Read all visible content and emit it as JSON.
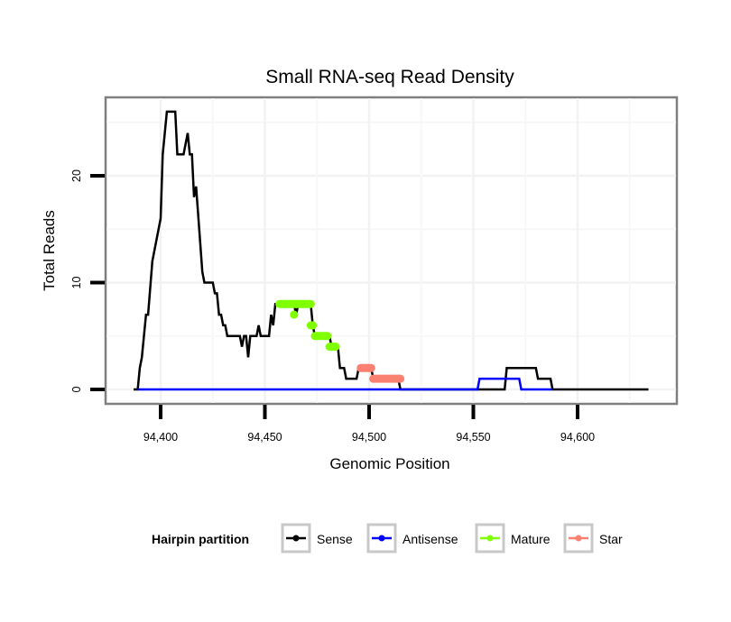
{
  "chart_data": {
    "type": "line",
    "title": "Small RNA-seq Read Density",
    "xlabel": "Genomic Position",
    "ylabel": "Total Reads",
    "xlim": [
      94380,
      94640
    ],
    "ylim": [
      -1.3,
      27.5
    ],
    "x_ticks": [
      94400,
      94450,
      94500,
      94550,
      94600
    ],
    "x_tick_labels": [
      "94,400",
      "94,450",
      "94,500",
      "94,550",
      "94,600"
    ],
    "y_ticks": [
      0,
      10,
      20
    ],
    "y_tick_labels": [
      "0",
      "10",
      "20"
    ],
    "grid": true,
    "legend": {
      "title": "Hairpin partition",
      "position": "bottom",
      "entries": [
        {
          "name": "Sense",
          "color": "#000000"
        },
        {
          "name": "Antisense",
          "color": "#0000ff"
        },
        {
          "name": "Mature",
          "color": "#7fff00"
        },
        {
          "name": "Star",
          "color": "#fa8072"
        }
      ]
    },
    "series": [
      {
        "name": "Sense",
        "color": "#000000",
        "style": "line",
        "points": [
          [
            94387,
            0
          ],
          [
            94389,
            0
          ],
          [
            94390,
            2
          ],
          [
            94391,
            3
          ],
          [
            94393,
            7
          ],
          [
            94394,
            7
          ],
          [
            94396,
            12
          ],
          [
            94398,
            14
          ],
          [
            94399,
            15
          ],
          [
            94400,
            16
          ],
          [
            94401,
            22
          ],
          [
            94403,
            26
          ],
          [
            94407,
            26
          ],
          [
            94408,
            22
          ],
          [
            94411,
            22
          ],
          [
            94413,
            24
          ],
          [
            94414,
            22
          ],
          [
            94415,
            22
          ],
          [
            94416,
            18
          ],
          [
            94417,
            19
          ],
          [
            94420,
            11
          ],
          [
            94421,
            10
          ],
          [
            94425,
            10
          ],
          [
            94426,
            9
          ],
          [
            94427,
            9
          ],
          [
            94428,
            7
          ],
          [
            94429,
            7
          ],
          [
            94430,
            6
          ],
          [
            94431,
            6
          ],
          [
            94432,
            5
          ],
          [
            94438,
            5
          ],
          [
            94439,
            4
          ],
          [
            94440,
            5
          ],
          [
            94441,
            5
          ],
          [
            94442,
            3
          ],
          [
            94443,
            5
          ],
          [
            94446,
            5
          ],
          [
            94447,
            6
          ],
          [
            94448,
            5
          ],
          [
            94452,
            5
          ],
          [
            94453,
            7
          ],
          [
            94454,
            6
          ],
          [
            94455,
            8
          ],
          [
            94464,
            8
          ],
          [
            94465,
            7
          ],
          [
            94466,
            8
          ],
          [
            94472,
            8
          ],
          [
            94473,
            6
          ],
          [
            94474,
            5
          ],
          [
            94481,
            5
          ],
          [
            94482,
            4
          ],
          [
            94485,
            4
          ],
          [
            94486,
            2
          ],
          [
            94488,
            2
          ],
          [
            94489,
            1
          ],
          [
            94494,
            1
          ],
          [
            94495,
            2
          ],
          [
            94501,
            2
          ],
          [
            94502,
            1
          ],
          [
            94514,
            1
          ],
          [
            94515,
            0
          ],
          [
            94565,
            0
          ],
          [
            94566,
            2
          ],
          [
            94580,
            2
          ],
          [
            94581,
            1
          ],
          [
            94587,
            1
          ],
          [
            94588,
            0
          ],
          [
            94634,
            0
          ]
        ]
      },
      {
        "name": "Antisense",
        "color": "#0000ff",
        "style": "line",
        "points": [
          [
            94389,
            0
          ],
          [
            94552,
            0
          ],
          [
            94553,
            1
          ],
          [
            94572,
            1
          ],
          [
            94573,
            0
          ],
          [
            94588,
            0
          ]
        ]
      },
      {
        "name": "Mature",
        "color": "#7fff00",
        "style": "points",
        "segments": [
          {
            "x": [
              94457,
              94465
            ],
            "y": 8
          },
          {
            "x": [
              94465,
              94472
            ],
            "y": 8
          },
          {
            "x": [
              94464,
              94464
            ],
            "y": 7
          },
          {
            "x": [
              94472,
              94473
            ],
            "y": 6
          },
          {
            "x": [
              94474,
              94480
            ],
            "y": 5
          },
          {
            "x": [
              94481,
              94484
            ],
            "y": 4
          }
        ]
      },
      {
        "name": "Star",
        "color": "#fa8072",
        "style": "points",
        "segments": [
          {
            "x": [
              94496,
              94501
            ],
            "y": 2
          },
          {
            "x": [
              94502,
              94515
            ],
            "y": 1
          }
        ]
      }
    ]
  }
}
